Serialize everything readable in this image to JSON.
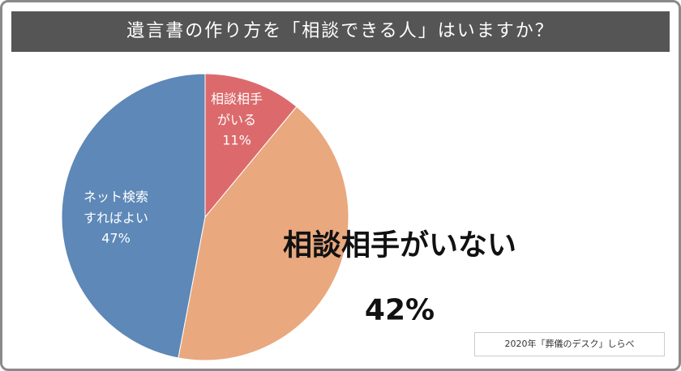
{
  "chart_data": {
    "type": "pie",
    "title": "遺言書の作り方を「相談できる人」はいますか？",
    "categories": [
      "相談相手がいる",
      "相談相手がいない",
      "ネット検索すればよい"
    ],
    "values": [
      11,
      42,
      47
    ],
    "value_labels": [
      "11%",
      "42%",
      "47%"
    ],
    "colors": [
      "#dc6a6c",
      "#e9a87e",
      "#5d88b7"
    ],
    "source": "2020年「葬儀のデスク」しらべ"
  }
}
